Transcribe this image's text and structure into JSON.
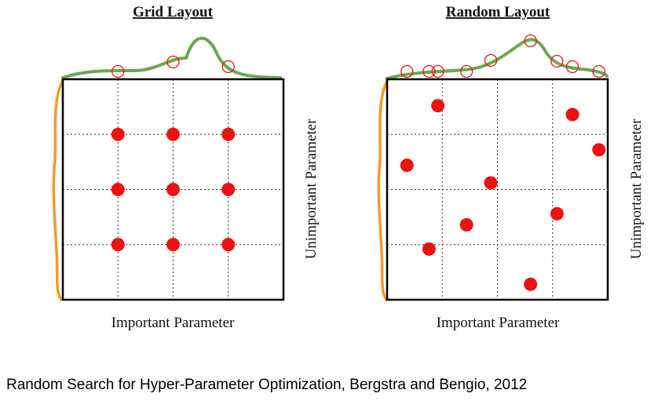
{
  "panels": [
    {
      "id": "grid",
      "title": "Grid Layout",
      "xlabel": "Important Parameter",
      "ylabel": "Unimportant Parameter",
      "points": [
        [
          0.25,
          0.75
        ],
        [
          0.5,
          0.75
        ],
        [
          0.75,
          0.75
        ],
        [
          0.25,
          0.5
        ],
        [
          0.5,
          0.5
        ],
        [
          0.75,
          0.5
        ],
        [
          0.25,
          0.25
        ],
        [
          0.5,
          0.25
        ],
        [
          0.75,
          0.25
        ]
      ],
      "projections": [
        0.25,
        0.5,
        0.75
      ]
    },
    {
      "id": "random",
      "title": "Random Layout",
      "xlabel": "Important Parameter",
      "ylabel": "Unimportant Parameter",
      "points": [
        [
          0.09,
          0.61
        ],
        [
          0.23,
          0.88
        ],
        [
          0.19,
          0.23
        ],
        [
          0.36,
          0.34
        ],
        [
          0.47,
          0.53
        ],
        [
          0.65,
          0.07
        ],
        [
          0.77,
          0.39
        ],
        [
          0.84,
          0.84
        ],
        [
          0.96,
          0.68
        ]
      ],
      "projections": [
        0.09,
        0.19,
        0.23,
        0.36,
        0.47,
        0.65,
        0.77,
        0.84,
        0.96
      ]
    }
  ],
  "caption": "Random Search for Hyper-Parameter Optimization, Bergstra and Bengio, 2012",
  "colors": {
    "point": "#ee1111",
    "importance_curve": "#6aa84f",
    "unimportant_curve": "#f39c27"
  }
}
